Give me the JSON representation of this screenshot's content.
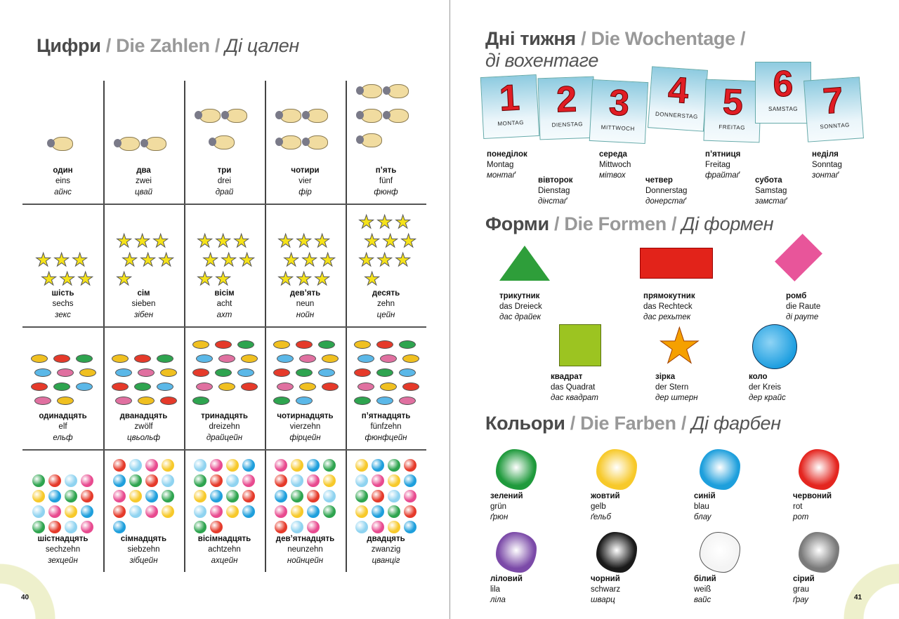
{
  "left_page": {
    "page_number": "40",
    "title": {
      "uk": "Цифри",
      "sep": " / ",
      "de": "Die Zahlen",
      "sep2": " / ",
      "tr": "Ді цален"
    },
    "numbers": [
      {
        "uk": "один",
        "de": "eins",
        "tr": "айнс",
        "count": 1,
        "picture": "sheep"
      },
      {
        "uk": "два",
        "de": "zwei",
        "tr": "цвай",
        "count": 2,
        "picture": "sheep"
      },
      {
        "uk": "три",
        "de": "drei",
        "tr": "драй",
        "count": 3,
        "picture": "sheep"
      },
      {
        "uk": "чотири",
        "de": "vier",
        "tr": "фір",
        "count": 4,
        "picture": "sheep"
      },
      {
        "uk": "п’ять",
        "de": "fünf",
        "tr": "фюнф",
        "count": 5,
        "picture": "sheep"
      },
      {
        "uk": "шість",
        "de": "sechs",
        "tr": "зекс",
        "count": 6,
        "picture": "star"
      },
      {
        "uk": "сім",
        "de": "sieben",
        "tr": "зібен",
        "count": 7,
        "picture": "star"
      },
      {
        "uk": "вісім",
        "de": "acht",
        "tr": "ахт",
        "count": 8,
        "picture": "star"
      },
      {
        "uk": "дев’ять",
        "de": "neun",
        "tr": "нойн",
        "count": 9,
        "picture": "star"
      },
      {
        "uk": "десять",
        "de": "zehn",
        "tr": "цейн",
        "count": 10,
        "picture": "star"
      },
      {
        "uk": "одинадцять",
        "de": "elf",
        "tr": "ельф",
        "count": 11,
        "picture": "candy"
      },
      {
        "uk": "дванадцять",
        "de": "zwölf",
        "tr": "цвьольф",
        "count": 12,
        "picture": "candy"
      },
      {
        "uk": "тринадцять",
        "de": "dreizehn",
        "tr": "драйцейн",
        "count": 13,
        "picture": "candy"
      },
      {
        "uk": "чотирнадцять",
        "de": "vierzehn",
        "tr": "фірцейн",
        "count": 14,
        "picture": "candy"
      },
      {
        "uk": "п’ятнадцять",
        "de": "fünfzehn",
        "tr": "фюнфцейн",
        "count": 15,
        "picture": "candy"
      },
      {
        "uk": "шістнадцять",
        "de": "sechzehn",
        "tr": "зехцейн",
        "count": 16,
        "picture": "ball"
      },
      {
        "uk": "сімнадцять",
        "de": "siebzehn",
        "tr": "зібцейн",
        "count": 17,
        "picture": "ball"
      },
      {
        "uk": "вісімнадцять",
        "de": "achtzehn",
        "tr": "ахцейн",
        "count": 18,
        "picture": "ball"
      },
      {
        "uk": "дев’ятнадцять",
        "de": "neunzehn",
        "tr": "нойнцейн",
        "count": 19,
        "picture": "ball"
      },
      {
        "uk": "двадцять",
        "de": "zwanzig",
        "tr": "цванціг",
        "count": 20,
        "picture": "ball"
      }
    ]
  },
  "right_page": {
    "page_number": "41",
    "weekdays_title": {
      "uk": "Дні тижня",
      "sep": " / ",
      "de": "Die Wochentage",
      "sep2": " /",
      "tr": "ді вохентаге"
    },
    "calendar": [
      {
        "n": "1",
        "label": "MONTAG"
      },
      {
        "n": "2",
        "label": "DIENSTAG"
      },
      {
        "n": "3",
        "label": "MITTWOCH"
      },
      {
        "n": "4",
        "label": "DONNERSTAG"
      },
      {
        "n": "5",
        "label": "FREITAG"
      },
      {
        "n": "6",
        "label": "SAMSTAG"
      },
      {
        "n": "7",
        "label": "SONNTAG"
      }
    ],
    "weekdays": [
      {
        "uk": "понеділок",
        "de": "Montag",
        "tr": "монтаґ"
      },
      {
        "uk": "вівторок",
        "de": "Dienstag",
        "tr": "дінстаґ"
      },
      {
        "uk": "середа",
        "de": "Mittwoch",
        "tr": "мітвох"
      },
      {
        "uk": "четвер",
        "de": "Donnerstag",
        "tr": "донерстаґ"
      },
      {
        "uk": "п’ятниця",
        "de": "Freitag",
        "tr": "фрайтаґ"
      },
      {
        "uk": "субота",
        "de": "Samstag",
        "tr": "замстаґ"
      },
      {
        "uk": "неділя",
        "de": "Sonntag",
        "tr": "зонтаґ"
      }
    ],
    "shapes_title": {
      "uk": "Форми",
      "sep": " / ",
      "de": "Die Formen",
      "sep2": " / ",
      "tr": "Ді формен"
    },
    "shapes": [
      {
        "uk": "трикутник",
        "de": "das Dreieck",
        "tr": "дас драйек",
        "shape": "triangle",
        "color": "#2e9e3a"
      },
      {
        "uk": "прямокутник",
        "de": "das Rechteck",
        "tr": "дас рехьтек",
        "shape": "rectangle",
        "color": "#e2231a"
      },
      {
        "uk": "ромб",
        "de": "die Raute",
        "tr": "ді раутe",
        "shape": "diamond",
        "color": "#e8559a"
      },
      {
        "uk": "квадрат",
        "de": "das Quadrat",
        "tr": "дас квадрат",
        "shape": "square",
        "color": "#9cc421"
      },
      {
        "uk": "зірка",
        "de": "der Stern",
        "tr": "дер штерн",
        "shape": "star",
        "color": "#f5a000"
      },
      {
        "uk": "коло",
        "de": "der Kreis",
        "tr": "дер крайс",
        "shape": "circle",
        "color": "#1d9ee0"
      }
    ],
    "colors_title": {
      "uk": "Кольори",
      "sep": " / ",
      "de": "Die Farben",
      "sep2": " / ",
      "tr": "Ді фарбен"
    },
    "colors": [
      {
        "uk": "зелений",
        "de": "grün",
        "tr": "ґрюн",
        "color": "#1f9a3c"
      },
      {
        "uk": "жовтий",
        "de": "gelb",
        "tr": "ґельб",
        "color": "#f7c92a"
      },
      {
        "uk": "синій",
        "de": "blau",
        "tr": "блау",
        "color": "#1e9fdc"
      },
      {
        "uk": "червоний",
        "de": "rot",
        "tr": "рот",
        "color": "#e42620"
      },
      {
        "uk": "ліловий",
        "de": "lila",
        "tr": "ліла",
        "color": "#7b4aa8"
      },
      {
        "uk": "чорний",
        "de": "schwarz",
        "tr": "шварц",
        "color": "#1a1a1a"
      },
      {
        "uk": "білий",
        "de": "weiß",
        "tr": "вайс",
        "color": "#f4f4f4"
      },
      {
        "uk": "сірий",
        "de": "grau",
        "tr": "ґрау",
        "color": "#7a7a7a"
      }
    ]
  }
}
